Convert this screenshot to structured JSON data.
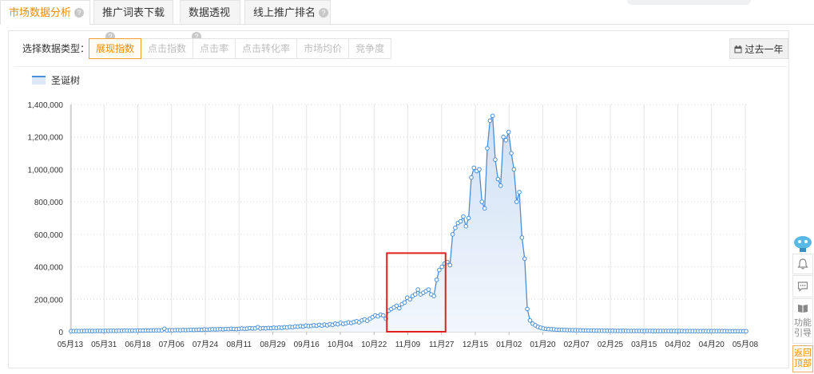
{
  "tabs": [
    {
      "label": "市场数据分析",
      "active": true
    },
    {
      "label": "推广词表下载",
      "active": false
    },
    {
      "label": "数据透视",
      "active": false
    },
    {
      "label": "线上推广排名",
      "active": false
    }
  ],
  "data_type": {
    "label": "选择数据类型：",
    "options": [
      "展现指数",
      "点击指数",
      "点击率",
      "点击转化率",
      "市场均价",
      "竞争度"
    ],
    "selected": "展现指数"
  },
  "range_button": {
    "label": "过去一年",
    "icon": "calendar-icon"
  },
  "side_tools": {
    "guide_label": "功能引导",
    "top_label": "返回顶部"
  },
  "colors": {
    "accent": "#f08c00",
    "series": "#4a8fd8",
    "area": "#dce8f6",
    "highlight": "#e02020"
  },
  "chart_data": {
    "type": "area",
    "title": "",
    "xlabel": "",
    "ylabel": "",
    "legend": "top-left",
    "grid": true,
    "ylim": [
      0,
      1400000
    ],
    "yticks": [
      0,
      200000,
      400000,
      600000,
      800000,
      1000000,
      1200000,
      1400000
    ],
    "ytick_labels": [
      "0",
      "200,000",
      "400,000",
      "600,000",
      "800,000",
      "1,000,000",
      "1,200,000",
      "1,400,000"
    ],
    "xtick_labels": [
      "05月13",
      "05月31",
      "06月18",
      "07月06",
      "07月24",
      "08月11",
      "08月29",
      "09月16",
      "10月04",
      "10月22",
      "11月09",
      "11月27",
      "12月15",
      "01月02",
      "01月20",
      "02月07",
      "02月25",
      "03月15",
      "04月02",
      "04月20",
      "05月08"
    ],
    "series": [
      {
        "name": "圣诞树",
        "values": [
          4000,
          4000,
          4500,
          4000,
          4200,
          4500,
          5000,
          4800,
          4500,
          5000,
          5200,
          5000,
          4800,
          5500,
          5200,
          5800,
          6000,
          5500,
          6500,
          6000,
          6200,
          6500,
          6000,
          7000,
          6500,
          7000,
          7500,
          7000,
          8000,
          7500,
          8000,
          8500,
          9000,
          8500,
          9000,
          18000,
          8000,
          9500,
          9000,
          10000,
          10500,
          9500,
          11000,
          10000,
          11000,
          12000,
          11000,
          12000,
          13000,
          12000,
          14000,
          13000,
          14000,
          15000,
          14000,
          15000,
          16000,
          14500,
          17000,
          16000,
          18000,
          17000,
          16000,
          18000,
          20000,
          18000,
          19000,
          22000,
          20000,
          21000,
          28000,
          20000,
          22000,
          21000,
          23000,
          22000,
          25000,
          23000,
          26000,
          24000,
          28000,
          26000,
          30000,
          28000,
          33000,
          31000,
          35000,
          32000,
          38000,
          35000,
          36000,
          40000,
          37000,
          42000,
          38000,
          44000,
          40000,
          46000,
          42000,
          50000,
          46000,
          55000,
          48000,
          52000,
          58000,
          54000,
          60000,
          65000,
          58000,
          70000,
          75000,
          68000,
          80000,
          90000,
          100000,
          95000,
          105000,
          100000,
          80000,
          130000,
          140000,
          150000,
          160000,
          145000,
          170000,
          180000,
          210000,
          200000,
          220000,
          230000,
          260000,
          230000,
          240000,
          250000,
          260000,
          230000,
          220000,
          320000,
          380000,
          400000,
          420000,
          430000,
          410000,
          600000,
          640000,
          670000,
          680000,
          710000,
          650000,
          700000,
          950000,
          1010000,
          990000,
          1000000,
          800000,
          760000,
          1130000,
          1300000,
          1330000,
          1060000,
          940000,
          900000,
          1200000,
          1180000,
          1230000,
          1100000,
          1000000,
          800000,
          860000,
          580000,
          450000,
          140000,
          70000,
          50000,
          40000,
          30000,
          25000,
          20000,
          18000,
          16000,
          15000,
          14000,
          13000,
          12000,
          11500,
          11000,
          10500,
          10000,
          9500,
          9000,
          9000,
          8500,
          8000,
          8000,
          7500,
          7500,
          7000,
          7000,
          6500,
          6500,
          6000,
          6000,
          6000,
          5800,
          5600,
          5500,
          5400,
          5300,
          5200,
          5100,
          5000,
          5000,
          5000,
          4900,
          4800,
          4800,
          4700,
          4700,
          4600,
          4600,
          4500,
          4500,
          4500,
          4400,
          4400,
          4300,
          4300,
          4200,
          4200,
          4200,
          4100,
          4100,
          4000,
          4000,
          4000,
          4000,
          3900,
          3900,
          3900,
          3800,
          3800,
          3800,
          3800,
          3700,
          3700,
          3700,
          3600,
          3600,
          3600,
          3600,
          3500,
          3500,
          3500,
          3500
        ]
      }
    ],
    "annotation": {
      "type": "highlight-box",
      "x_start": "10月22",
      "x_end": "11月27",
      "y_from": 0,
      "y_to": 450000
    }
  }
}
